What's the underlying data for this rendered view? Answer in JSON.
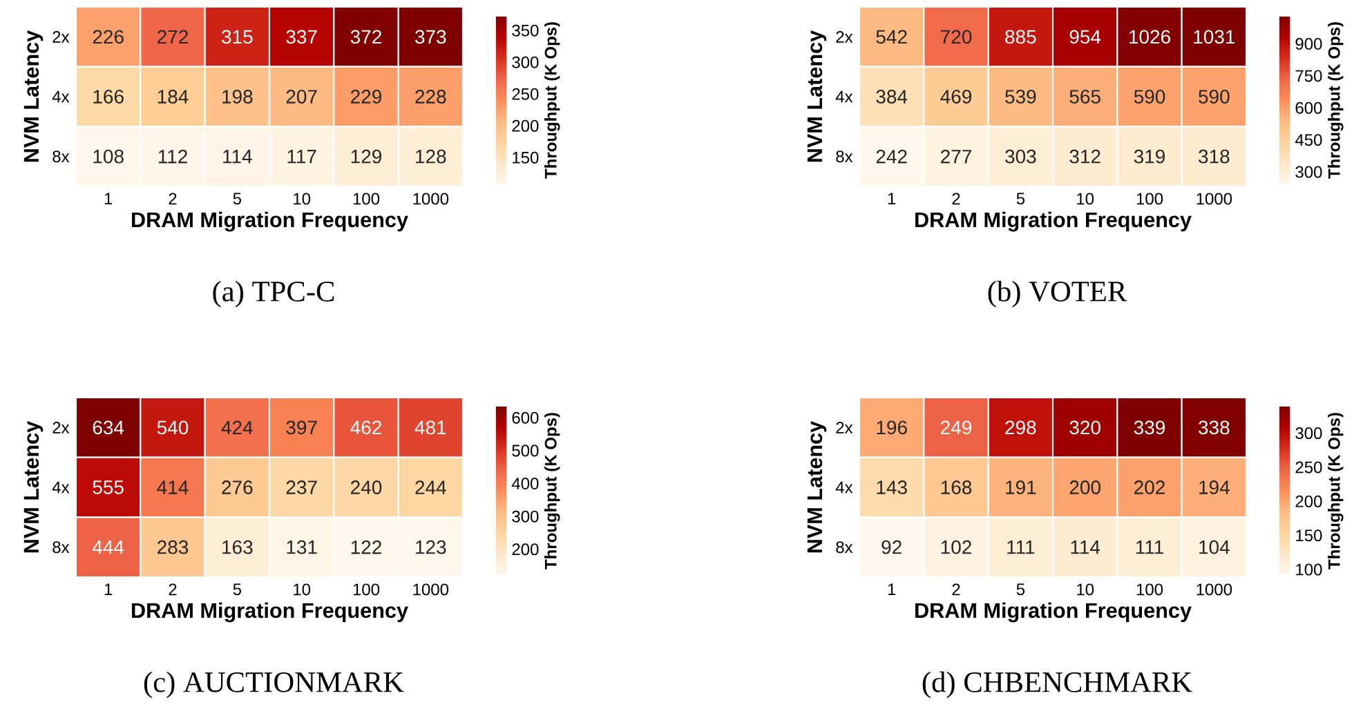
{
  "chart_data": [
    {
      "type": "heatmap",
      "xlabel": "DRAM Migration Frequency",
      "ylabel": "NVM Latency",
      "clabel": "Throughput (K Ops)",
      "annotations": [
        "(a) TPC-C"
      ],
      "data_labels": true,
      "categories": [
        "1",
        "2",
        "5",
        "10",
        "100",
        "1000"
      ],
      "y_categories": [
        "2x",
        "4x",
        "8x"
      ],
      "cells": [
        [
          226,
          272,
          315,
          337,
          372,
          373
        ],
        [
          166,
          184,
          198,
          207,
          229,
          228
        ],
        [
          108,
          112,
          114,
          117,
          129,
          128
        ]
      ],
      "clim": [
        108,
        373
      ],
      "cticks": [
        150,
        200,
        250,
        300,
        350
      ]
    },
    {
      "type": "heatmap",
      "xlabel": "DRAM Migration Frequency",
      "ylabel": "NVM Latency",
      "clabel": "Throughput (K Ops)",
      "annotations": [
        "(b) VOTER"
      ],
      "data_labels": true,
      "categories": [
        "1",
        "2",
        "5",
        "10",
        "100",
        "1000"
      ],
      "y_categories": [
        "2x",
        "4x",
        "8x"
      ],
      "cells": [
        [
          542,
          720,
          885,
          954,
          1026,
          1031
        ],
        [
          384,
          469,
          539,
          565,
          590,
          590
        ],
        [
          242,
          277,
          303,
          312,
          319,
          318
        ]
      ],
      "clim": [
        242,
        1031
      ],
      "cticks": [
        300,
        450,
        600,
        750,
        900
      ]
    },
    {
      "type": "heatmap",
      "xlabel": "DRAM Migration Frequency",
      "ylabel": "NVM Latency",
      "clabel": "Throughput (K Ops)",
      "annotations": [
        "(c) AUCTIONMARK"
      ],
      "data_labels": true,
      "categories": [
        "1",
        "2",
        "5",
        "10",
        "100",
        "1000"
      ],
      "y_categories": [
        "2x",
        "4x",
        "8x"
      ],
      "cells": [
        [
          634,
          540,
          424,
          397,
          462,
          481
        ],
        [
          555,
          414,
          276,
          237,
          240,
          244
        ],
        [
          444,
          283,
          163,
          131,
          122,
          123
        ]
      ],
      "clim": [
        122,
        634
      ],
      "cticks": [
        200,
        300,
        400,
        500,
        600
      ]
    },
    {
      "type": "heatmap",
      "xlabel": "DRAM Migration Frequency",
      "ylabel": "NVM Latency",
      "clabel": "Throughput (K Ops)",
      "annotations": [
        "(d) CHBENCHMARK"
      ],
      "data_labels": true,
      "categories": [
        "1",
        "2",
        "5",
        "10",
        "100",
        "1000"
      ],
      "y_categories": [
        "2x",
        "4x",
        "8x"
      ],
      "cells": [
        [
          196,
          249,
          298,
          320,
          339,
          338
        ],
        [
          143,
          168,
          191,
          200,
          202,
          194
        ],
        [
          92,
          102,
          111,
          114,
          111,
          104
        ]
      ],
      "clim": [
        92,
        339
      ],
      "cticks": [
        100,
        150,
        200,
        250,
        300
      ]
    }
  ]
}
